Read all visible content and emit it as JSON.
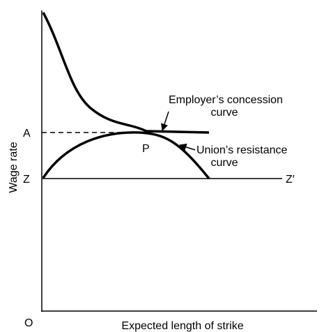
{
  "axes": {
    "y_label": "Wage rate",
    "x_label": "Expected length of strike",
    "origin": "O"
  },
  "points": {
    "a": "A",
    "z": "Z",
    "z_prime": "Z′",
    "p": "P"
  },
  "curves": [
    {
      "label_line1": "Employer’s concession",
      "label_line2": "curve"
    },
    {
      "label_line1": "Union’s resistance",
      "label_line2": "curve"
    }
  ]
}
